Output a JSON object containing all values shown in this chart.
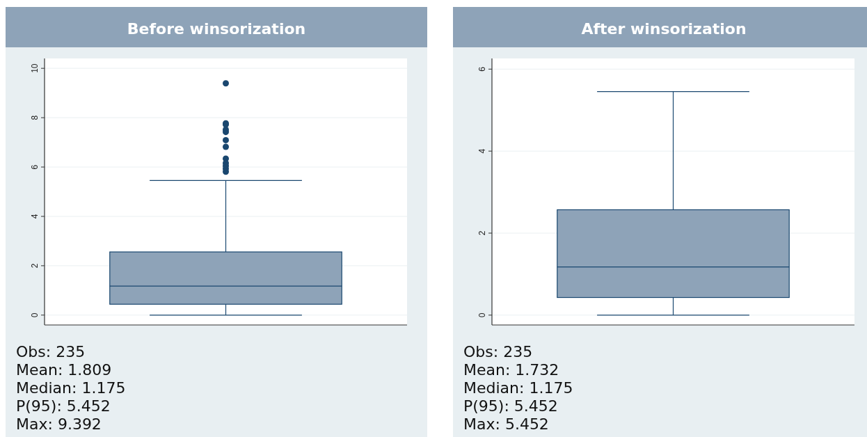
{
  "chart_data": [
    {
      "type": "box",
      "title": "Before winsorization",
      "categories": [
        null
      ],
      "color": "#8ea3b8",
      "boxes": [
        {
          "low": 0,
          "q1": 0.44,
          "median": 1.175,
          "q3": 2.56,
          "high": 5.452,
          "outliers": [
            9.392,
            7.77,
            7.72,
            7.51,
            7.42,
            7.09,
            6.82,
            6.34,
            6.16,
            6.05,
            5.93,
            5.81
          ]
        }
      ],
      "ylim": [
        -0.4,
        10.4
      ],
      "yticks": [
        0,
        2,
        4,
        6,
        8,
        10
      ],
      "grid": "y",
      "tick_labels": "y",
      "annotations": [
        "Obs: 235",
        "Mean: 1.809",
        "Median: 1.175",
        "P(95): 5.452",
        "Max: 9.392"
      ]
    },
    {
      "type": "box",
      "title": "After winsorization",
      "categories": [
        null
      ],
      "color": "#8ea3b8",
      "boxes": [
        {
          "low": 0,
          "q1": 0.43,
          "median": 1.175,
          "q3": 2.57,
          "high": 5.452
        }
      ],
      "ylim": [
        -0.24,
        6.26
      ],
      "yticks": [
        0,
        2,
        4,
        6
      ],
      "grid": "y",
      "tick_labels": "y",
      "annotations": [
        "Obs: 235",
        "Mean: 1.732",
        "Median: 1.175",
        "P(95): 5.452",
        "Max: 5.452"
      ]
    }
  ]
}
